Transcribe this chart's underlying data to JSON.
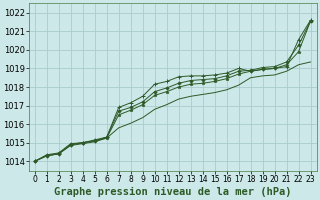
{
  "bg_color": "#cce8e8",
  "grid_color": "#aacccc",
  "line_color": "#2d5a27",
  "marker_color": "#2d5a27",
  "xlabel": "Graphe pression niveau de la mer (hPa)",
  "xlabel_fontsize": 7.5,
  "xtick_fontsize": 5.5,
  "ytick_fontsize": 6,
  "xlim": [
    -0.5,
    23.5
  ],
  "ylim": [
    1013.5,
    1022.5
  ],
  "yticks": [
    1014,
    1015,
    1016,
    1017,
    1018,
    1019,
    1020,
    1021,
    1022
  ],
  "xticks": [
    0,
    1,
    2,
    3,
    4,
    5,
    6,
    7,
    8,
    9,
    10,
    11,
    12,
    13,
    14,
    15,
    16,
    17,
    18,
    19,
    20,
    21,
    22,
    23
  ],
  "series1": [
    1014.0,
    1014.3,
    1014.4,
    1014.85,
    1014.95,
    1015.05,
    1015.25,
    1015.8,
    1016.05,
    1016.35,
    1016.8,
    1017.05,
    1017.35,
    1017.5,
    1017.6,
    1017.7,
    1017.85,
    1018.1,
    1018.5,
    1018.6,
    1018.65,
    1018.85,
    1019.2,
    1019.35
  ],
  "series2": [
    1014.0,
    1014.3,
    1014.4,
    1014.9,
    1015.0,
    1015.1,
    1015.25,
    1016.5,
    1016.75,
    1017.05,
    1017.55,
    1017.75,
    1018.0,
    1018.15,
    1018.2,
    1018.3,
    1018.45,
    1018.7,
    1018.85,
    1018.95,
    1019.0,
    1019.2,
    1019.9,
    1021.55
  ],
  "series3": [
    1014.0,
    1014.3,
    1014.4,
    1014.9,
    1015.0,
    1015.1,
    1015.3,
    1016.9,
    1017.15,
    1017.5,
    1018.15,
    1018.3,
    1018.55,
    1018.6,
    1018.6,
    1018.65,
    1018.75,
    1019.0,
    1018.85,
    1018.95,
    1019.0,
    1019.1,
    1020.55,
    1021.6
  ],
  "series4": [
    1014.0,
    1014.35,
    1014.45,
    1014.95,
    1015.0,
    1015.15,
    1015.3,
    1016.7,
    1016.9,
    1017.2,
    1017.75,
    1017.95,
    1018.2,
    1018.35,
    1018.4,
    1018.45,
    1018.6,
    1018.85,
    1018.9,
    1019.05,
    1019.1,
    1019.35,
    1020.25,
    1021.55
  ]
}
